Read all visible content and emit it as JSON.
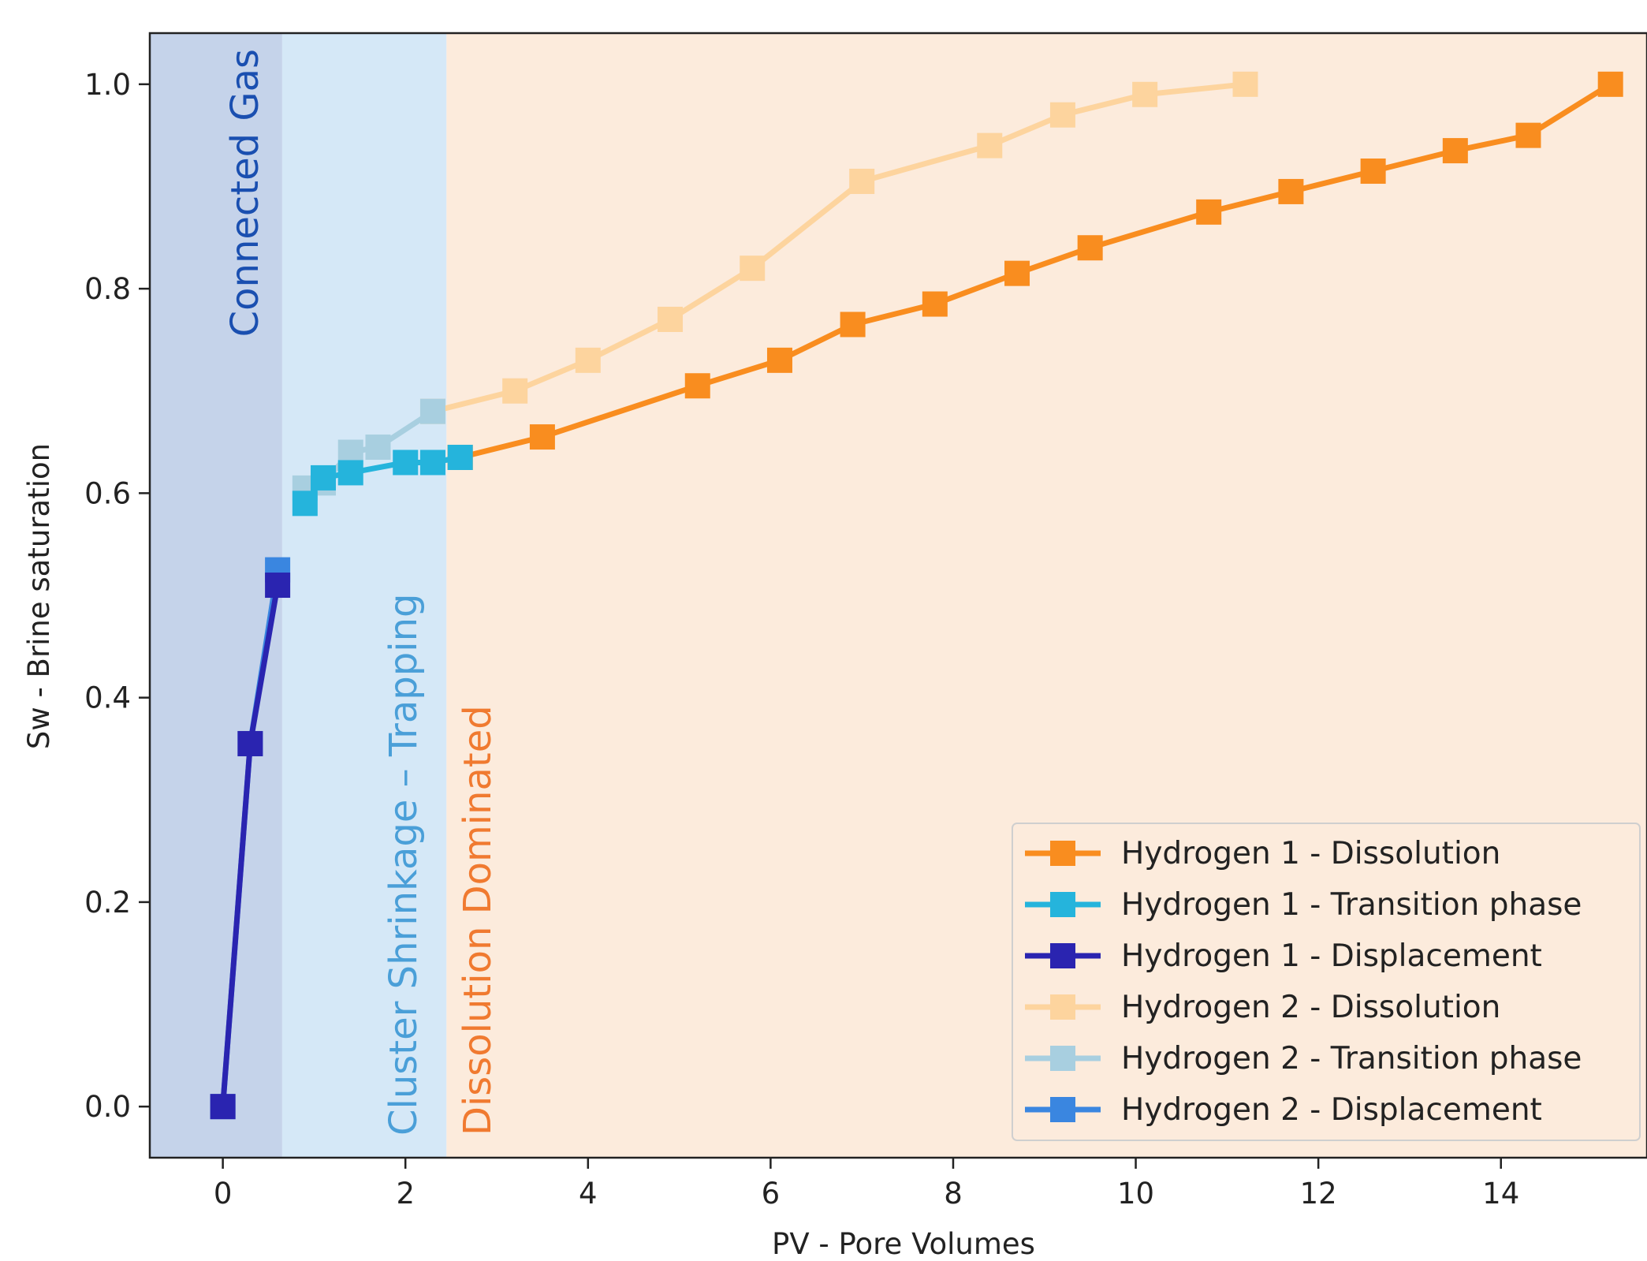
{
  "chart_data": {
    "type": "line",
    "xlabel": "PV - Pore Volumes",
    "ylabel": "Sw - Brine saturation",
    "xlim": [
      -0.8,
      15.6
    ],
    "ylim": [
      -0.05,
      1.05
    ],
    "xticks": [
      0,
      2,
      4,
      6,
      8,
      10,
      12,
      14
    ],
    "yticks": [
      0.0,
      0.2,
      0.4,
      0.6,
      0.8,
      1.0
    ],
    "xtick_labels": [
      "0",
      "2",
      "4",
      "6",
      "8",
      "10",
      "12",
      "14"
    ],
    "ytick_labels": [
      "0.0",
      "0.2",
      "0.4",
      "0.6",
      "0.8",
      "1.0"
    ],
    "grid": false,
    "legend_position": "lower-right",
    "regions": [
      {
        "label": "Connected Gas",
        "x_start": -0.8,
        "x_end": 0.65,
        "fill": "#c5d3ea",
        "text_color": "#1a4fb0"
      },
      {
        "label": "Cluster Shrinkage – Trapping",
        "x_start": 0.65,
        "x_end": 2.45,
        "fill": "#d5e8f7",
        "text_color": "#4a9fd8"
      },
      {
        "label": "Dissolution Dominated",
        "x_start": 2.45,
        "x_end": 15.6,
        "fill": "#fcebdc",
        "text_color": "#f07a30"
      }
    ],
    "series": [
      {
        "name": "Hydrogen 2 - Dissolution",
        "color": "#fdd49e",
        "x": [
          2.3,
          3.2,
          4.0,
          4.9,
          5.8,
          7.0,
          8.4,
          9.2,
          10.1,
          11.2
        ],
        "y": [
          0.68,
          0.7,
          0.73,
          0.77,
          0.82,
          0.905,
          0.94,
          0.97,
          0.99,
          1.0
        ]
      },
      {
        "name": "Hydrogen 2 - Transition phase",
        "color": "#a8cfe0",
        "x": [
          0.9,
          1.1,
          1.4,
          1.7,
          2.3
        ],
        "y": [
          0.605,
          0.61,
          0.64,
          0.645,
          0.68
        ]
      },
      {
        "name": "Hydrogen 2 - Displacement",
        "color": "#3a86e0",
        "x": [
          0.0,
          0.3,
          0.6
        ],
        "y": [
          0.0,
          0.355,
          0.525
        ]
      },
      {
        "name": "Hydrogen 1 - Dissolution",
        "color": "#f98d1f",
        "x": [
          2.6,
          3.5,
          5.2,
          6.1,
          6.9,
          7.8,
          8.7,
          9.5,
          10.8,
          11.7,
          12.6,
          13.5,
          14.3,
          15.2
        ],
        "y": [
          0.635,
          0.655,
          0.705,
          0.73,
          0.765,
          0.785,
          0.815,
          0.84,
          0.875,
          0.895,
          0.915,
          0.935,
          0.95,
          1.0
        ]
      },
      {
        "name": "Hydrogen 1 - Transition phase",
        "color": "#25b4dc",
        "x": [
          0.9,
          1.1,
          1.4,
          2.0,
          2.3,
          2.6
        ],
        "y": [
          0.59,
          0.615,
          0.62,
          0.63,
          0.63,
          0.635
        ]
      },
      {
        "name": "Hydrogen 1 - Displacement",
        "color": "#2a24b0",
        "x": [
          0.0,
          0.3,
          0.6
        ],
        "y": [
          0.0,
          0.355,
          0.51
        ]
      }
    ],
    "legend_order": [
      "Hydrogen 1 - Dissolution",
      "Hydrogen 1 - Transition phase",
      "Hydrogen 1 - Displacement",
      "Hydrogen 2 - Dissolution",
      "Hydrogen 2 - Transition phase",
      "Hydrogen 2 - Displacement"
    ]
  }
}
